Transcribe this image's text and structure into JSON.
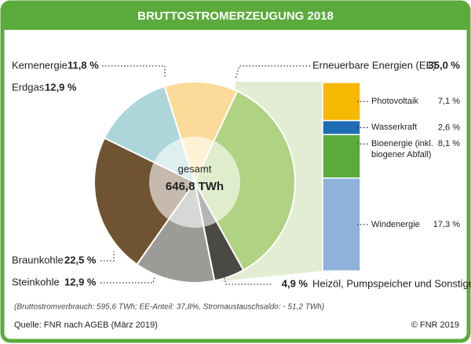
{
  "chart_data": [
    {
      "type": "pie",
      "title": "BRUTTOSTROMERZEUGUNG 2018",
      "center_text": [
        "gesamt",
        "646,8 TWh"
      ],
      "categories": [
        "Erneuerbare Energien (EE)",
        "Heizöl, Pumpspeicher und Sonstige",
        "Steinkohle",
        "Braunkohle",
        "Erdgas",
        "Kernenergie"
      ],
      "values": [
        35.0,
        4.9,
        12.9,
        22.5,
        12.9,
        11.8
      ],
      "value_labels": [
        "35,0 %",
        "4,9 %",
        "12,9 %",
        "22,5 %",
        "12,9 %",
        "11,8 %"
      ],
      "colors": [
        "#afd283",
        "#4a4944",
        "#9c9b97",
        "#6f5332",
        "#acd6da",
        "#fcdb9a"
      ]
    },
    {
      "type": "bar",
      "stacked": true,
      "categories": [
        "Photovoltaik",
        "Wasserkraft",
        "Bioenergie (inkl. biogener Abfall)",
        "Windenergie"
      ],
      "values": [
        7.1,
        2.6,
        8.1,
        17.3
      ],
      "value_labels": [
        "7,1 %",
        "2,6 %",
        "8,1 %",
        "17,3 %"
      ],
      "colors": [
        "#f6b800",
        "#1f6bb4",
        "#5bab3c",
        "#8eb2da"
      ]
    }
  ],
  "notes": "(Bruttostromverbrauch: 595,6 TWh; EE-Anteil: 37,8%, Stromaustauschsaldo: - 51,2 TWh)",
  "source": "Quelle: FNR nach AGEB (März 2019)",
  "copyright": "© FNR 2019"
}
